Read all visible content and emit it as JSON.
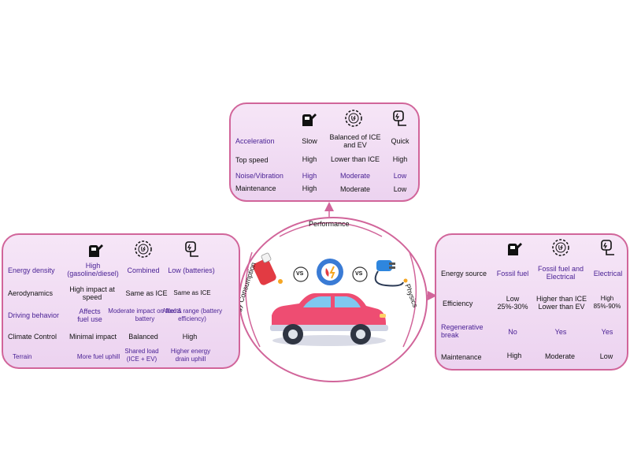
{
  "colors": {
    "panel_border": "#d1659a",
    "panel_fill": "#efd9f2",
    "label_purple": "#4a2295",
    "car_body": "#ee4d72",
    "fuel_nozzle": "#e23b43",
    "ev_plug": "#2e86de"
  },
  "icons": {
    "ice": "fuel-pump-icon",
    "hybrid": "gear-hybrid-icon",
    "ev": "ev-plug-icon"
  },
  "hub": {
    "vs_left": "VS",
    "vs_right": "VS",
    "label_performance": "Performance",
    "label_energy": "Energy Consumption",
    "label_physics": "Physics"
  },
  "performance": {
    "rows": [
      {
        "label": "Acceleration",
        "ice": "Slow",
        "hybrid": "Balanced of ICE and EV",
        "ev": "Quick"
      },
      {
        "label": "Top speed",
        "ice": "High",
        "hybrid": "Lower than ICE",
        "ev": "High"
      },
      {
        "label": "Noise/Vibration",
        "ice": "High",
        "hybrid": "Moderate",
        "ev": "Low"
      },
      {
        "label": "Maintenance",
        "ice": "High",
        "hybrid": "Moderate",
        "ev": "Low"
      }
    ]
  },
  "energy": {
    "rows": [
      {
        "label": "Energy density",
        "ice": "High (gasoline/diesel)",
        "hybrid": "Combined",
        "ev": "Low (batteries)"
      },
      {
        "label": "Aerodynamics",
        "ice": "High impact at speed",
        "hybrid": "Same as ICE",
        "ev": "Same as ICE"
      },
      {
        "label": "Driving behavior",
        "ice": "Affects fuel use",
        "hybrid": "Moderate impact on fuel & battery",
        "ev": "Affects range (battery efficiency)"
      },
      {
        "label": "Climate Control",
        "ice": "Minimal impact",
        "hybrid": "Balanced",
        "ev": "High"
      },
      {
        "label": "Terrain",
        "ice": "More fuel uphill",
        "hybrid": "Shared load (ICE + EV)",
        "ev": "Higher energy drain uphill"
      }
    ]
  },
  "physics": {
    "rows": [
      {
        "label": "Energy source",
        "ice": "Fossil fuel",
        "hybrid": "Fossil fuel and Electrical",
        "ev": "Electrical"
      },
      {
        "label": "Efficiency",
        "ice": "Low 25%-30%",
        "hybrid": "Higher than ICE Lower than EV",
        "ev": "High 85%-90%"
      },
      {
        "label": "Regenerative break",
        "ice": "No",
        "hybrid": "Yes",
        "ev": "Yes"
      },
      {
        "label": "Maintenance",
        "ice": "High",
        "hybrid": "Moderate",
        "ev": "Low"
      }
    ]
  }
}
